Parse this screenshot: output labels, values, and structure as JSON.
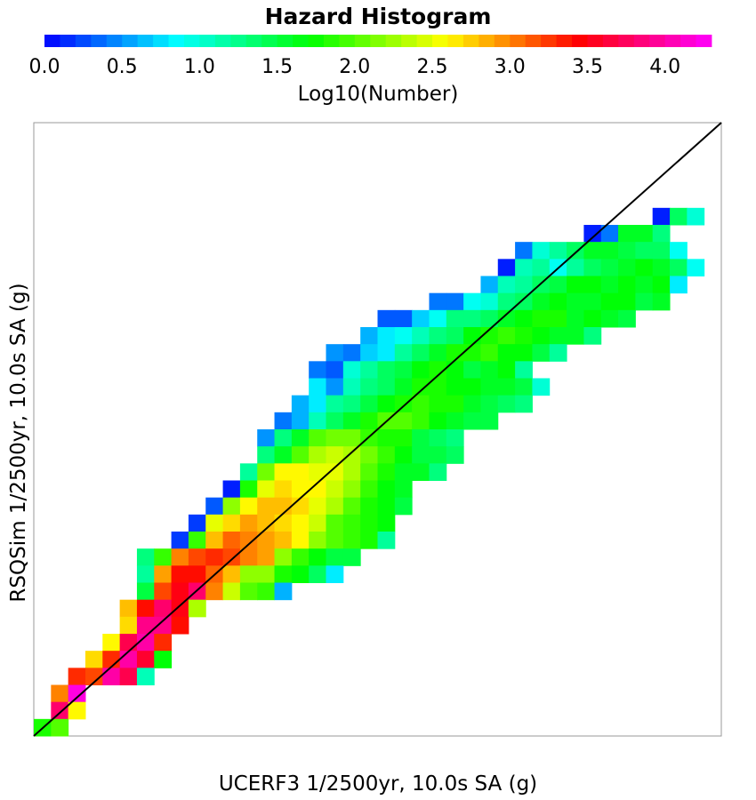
{
  "chart_data": {
    "type": "heatmap",
    "title": "Hazard Histogram",
    "xlabel": "UCERF3 1/2500yr, 10.0s SA (g)",
    "ylabel": "RSQSim 1/2500yr, 10.0s SA (g)",
    "grid": false,
    "legend": "colorbar-top",
    "colorbar": {
      "label": "Log10(Number)",
      "range": [
        0.0,
        4.3
      ],
      "ticks": [
        "0.0",
        "0.5",
        "1.0",
        "1.5",
        "2.0",
        "2.5",
        "3.0",
        "3.5",
        "4.0"
      ],
      "tick_values": [
        0.0,
        0.5,
        1.0,
        1.5,
        2.0,
        2.5,
        3.0,
        3.5,
        4.0
      ],
      "colors": [
        "#0000ff",
        "#00ffff",
        "#00ff00",
        "#ffff00",
        "#ff0000",
        "#ff00ff"
      ]
    },
    "bins": {
      "nx": 40,
      "ny": 36
    },
    "reference_line": "y = x",
    "note_rows": "rows listed top to bottom; each row is [start_column, values...]",
    "rows": [
      [],
      [],
      [],
      [],
      [],
      [
        36,
        0.1,
        1.4,
        1.0
      ],
      [
        32,
        0.1,
        0.4,
        1.6,
        1.6,
        1.3
      ],
      [
        28,
        0.4,
        1.0,
        1.2,
        1.4,
        1.6,
        1.6,
        1.5,
        1.4,
        1.4,
        0.9
      ],
      [
        27,
        0.1,
        1.1,
        1.2,
        0.9,
        1.2,
        1.4,
        1.5,
        1.6,
        1.7,
        1.6,
        1.4,
        0.9
      ],
      [
        26,
        0.6,
        1.1,
        1.2,
        1.4,
        1.5,
        1.7,
        1.7,
        1.6,
        1.7,
        1.6,
        1.7,
        0.8
      ],
      [
        23,
        0.4,
        0.4,
        0.9,
        1.0,
        1.3,
        1.4,
        1.6,
        1.7,
        1.6,
        1.6,
        1.7,
        1.7,
        1.5,
        1.6
      ],
      [
        20,
        0.3,
        0.3,
        0.7,
        0.9,
        1.3,
        1.3,
        1.4,
        1.6,
        1.7,
        1.8,
        1.8,
        1.6,
        1.7,
        1.6,
        1.5
      ],
      [
        19,
        0.6,
        0.8,
        0.9,
        1.1,
        1.3,
        1.4,
        1.7,
        1.8,
        1.9,
        1.8,
        1.7,
        1.6,
        1.6,
        1.3
      ],
      [
        17,
        0.5,
        0.4,
        0.7,
        0.8,
        1.2,
        1.4,
        1.6,
        1.8,
        1.8,
        1.9,
        1.7,
        1.7,
        1.5,
        1.2
      ],
      [
        16,
        0.4,
        0.3,
        1.0,
        1.2,
        1.4,
        1.5,
        1.7,
        1.8,
        1.7,
        1.5,
        1.6,
        1.7,
        1.2
      ],
      [
        16,
        0.8,
        0.5,
        1.1,
        1.3,
        1.4,
        1.6,
        1.8,
        1.8,
        1.7,
        1.7,
        1.6,
        1.6,
        1.5,
        1.0
      ],
      [
        15,
        0.6,
        0.8,
        1.2,
        1.3,
        1.5,
        1.7,
        1.8,
        1.9,
        1.8,
        1.8,
        1.6,
        1.5,
        1.4,
        1.3
      ],
      [
        14,
        0.4,
        0.6,
        1.1,
        1.4,
        1.6,
        1.8,
        2.0,
        2.0,
        1.9,
        1.7,
        1.6,
        1.5,
        1.5
      ],
      [
        13,
        0.5,
        1.3,
        1.6,
        2.0,
        2.1,
        2.1,
        1.9,
        1.8,
        1.8,
        1.5,
        1.4,
        1.3
      ],
      [
        13,
        1.3,
        1.6,
        2.0,
        2.3,
        2.4,
        2.3,
        2.1,
        1.9,
        1.7,
        1.5,
        1.5,
        1.4
      ],
      [
        12,
        1.2,
        2.1,
        2.6,
        2.6,
        2.5,
        2.5,
        2.3,
        2.0,
        1.8,
        1.6,
        1.6,
        1.3
      ],
      [
        11,
        0.1,
        1.8,
        2.5,
        2.7,
        2.6,
        2.6,
        2.4,
        2.2,
        1.9,
        1.7,
        1.6
      ],
      [
        10,
        0.3,
        2.2,
        2.6,
        2.8,
        2.8,
        2.7,
        2.5,
        2.3,
        2.0,
        1.8,
        1.7,
        1.5
      ],
      [
        9,
        0.2,
        2.5,
        2.7,
        2.9,
        2.8,
        2.7,
        2.6,
        2.4,
        2.0,
        1.9,
        1.8,
        1.7
      ],
      [
        8,
        0.2,
        1.9,
        2.8,
        3.1,
        3.0,
        2.9,
        2.8,
        2.6,
        2.2,
        2.0,
        1.9,
        1.8,
        1.2
      ],
      [
        6,
        1.3,
        1.9,
        3.0,
        3.2,
        3.3,
        3.2,
        3.0,
        2.9,
        2.2,
        1.9,
        1.7,
        1.5,
        1.5
      ],
      [
        6,
        1.2,
        2.9,
        3.4,
        3.4,
        3.1,
        2.8,
        2.2,
        2.2,
        1.8,
        1.7,
        1.4,
        0.8
      ],
      [
        6,
        1.5,
        3.2,
        3.5,
        3.8,
        3.0,
        2.4,
        2.0,
        1.9,
        0.6
      ],
      [
        5,
        2.8,
        3.4,
        3.8,
        3.5,
        2.3
      ],
      [
        5,
        2.7,
        3.9,
        3.9,
        3.4
      ],
      [
        4,
        2.6,
        3.7,
        4.0,
        3.3
      ],
      [
        3,
        2.7,
        3.3,
        4.0,
        3.6,
        1.7
      ],
      [
        2,
        3.3,
        3.2,
        4.0,
        3.7,
        1.1
      ],
      [
        1,
        3.0,
        4.2
      ],
      [
        1,
        3.8,
        2.6
      ],
      [
        0,
        1.8,
        2.0
      ]
    ]
  }
}
